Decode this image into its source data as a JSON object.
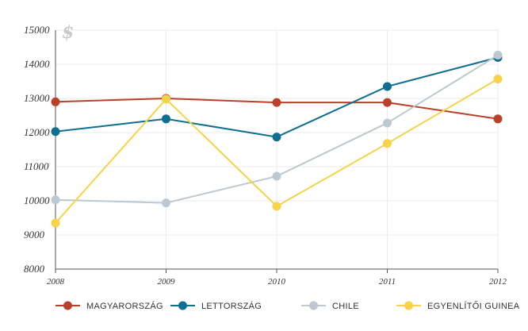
{
  "chart_data": {
    "type": "line",
    "unit_label": "$",
    "categories": [
      "2008",
      "2009",
      "2010",
      "2011",
      "2012"
    ],
    "ylim": [
      8000,
      15000
    ],
    "yticks": [
      "8000",
      "9000",
      "10000",
      "11000",
      "12000",
      "13000",
      "14000",
      "15000"
    ],
    "grid": true,
    "legend_position": "bottom",
    "series": [
      {
        "name": "MAGYARORSZÁG",
        "color": "#b9412b",
        "values": [
          12900,
          13000,
          12880,
          12880,
          12400
        ]
      },
      {
        "name": "LETTORSZÁG",
        "color": "#0f6f91",
        "values": [
          12030,
          12400,
          11870,
          13350,
          14200
        ]
      },
      {
        "name": "CHILE",
        "color": "#bcc9d0",
        "values": [
          10030,
          9940,
          10720,
          12280,
          14270
        ]
      },
      {
        "name": "EGYENLÍTŐI GUINEA",
        "color": "#f7d34a",
        "values": [
          9350,
          12980,
          9840,
          11680,
          13570
        ]
      }
    ]
  }
}
